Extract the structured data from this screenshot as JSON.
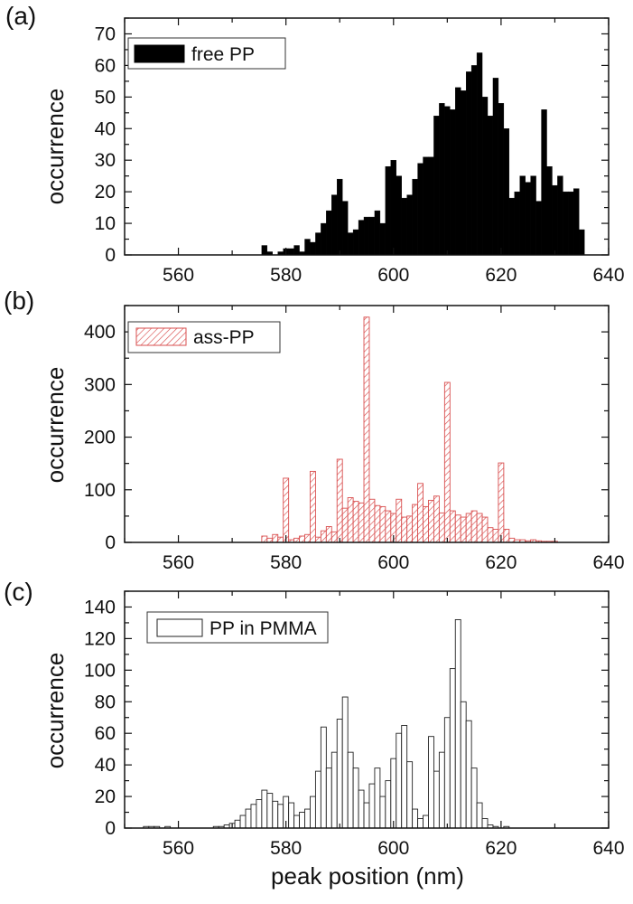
{
  "figure": {
    "xlabel": "peak position (nm)",
    "x_tick_labels": [
      "560",
      "580",
      "600",
      "620",
      "640"
    ]
  },
  "chart_data": [
    {
      "type": "bar",
      "panel_label": "(a)",
      "title": "",
      "xlabel": "",
      "ylabel": "occurrence",
      "xlim": [
        550,
        640
      ],
      "ylim": [
        0,
        75
      ],
      "xticks": [
        560,
        580,
        600,
        620,
        640
      ],
      "yticks": [
        0,
        10,
        20,
        30,
        40,
        50,
        60,
        70
      ],
      "y_tick_labels": [
        "0",
        "10",
        "20",
        "30",
        "40",
        "50",
        "60",
        "70"
      ],
      "legend_label": "free PP",
      "legend_placement": "top-left",
      "fill_color": "#000000",
      "stroke_color": "#000000",
      "pattern": "solid",
      "bin_width": 1,
      "x": [
        576,
        577,
        578,
        579,
        580,
        581,
        582,
        583,
        584,
        585,
        586,
        587,
        588,
        589,
        590,
        591,
        592,
        593,
        594,
        595,
        596,
        597,
        598,
        599,
        600,
        601,
        602,
        603,
        604,
        605,
        606,
        607,
        608,
        609,
        610,
        611,
        612,
        613,
        614,
        615,
        616,
        617,
        618,
        619,
        620,
        621,
        622,
        623,
        624,
        625,
        626,
        627,
        628,
        629,
        630,
        631,
        632,
        633,
        634,
        635
      ],
      "values": [
        3,
        1,
        0,
        1,
        2,
        2,
        3,
        1,
        5,
        4,
        7,
        10,
        14,
        19,
        24,
        17,
        7,
        8,
        11,
        12,
        12,
        14,
        10,
        28,
        30,
        25,
        18,
        19,
        24,
        29,
        31,
        31,
        44,
        48,
        47,
        46,
        53,
        52,
        58,
        60,
        64,
        50,
        44,
        56,
        48,
        40,
        18,
        20,
        25,
        23,
        25,
        17,
        46,
        28,
        22,
        25,
        20,
        20,
        21,
        8
      ]
    },
    {
      "type": "bar",
      "panel_label": "(b)",
      "title": "",
      "xlabel": "",
      "ylabel": "occurrence",
      "xlim": [
        550,
        640
      ],
      "ylim": [
        0,
        450
      ],
      "xticks": [
        560,
        580,
        600,
        620,
        640
      ],
      "yticks": [
        0,
        100,
        200,
        300,
        400
      ],
      "y_tick_labels": [
        "0",
        "100",
        "200",
        "300",
        "400"
      ],
      "legend_label": "ass-PP",
      "legend_placement": "top-left",
      "fill_color": "#ffffff",
      "stroke_color": "#d94f4f",
      "pattern": "diagonal-hatch",
      "bin_width": 1,
      "x": [
        576,
        577,
        578,
        579,
        580,
        581,
        582,
        583,
        584,
        585,
        586,
        587,
        588,
        589,
        590,
        591,
        592,
        593,
        594,
        595,
        596,
        597,
        598,
        599,
        600,
        601,
        602,
        603,
        604,
        605,
        606,
        607,
        608,
        609,
        610,
        611,
        612,
        613,
        614,
        615,
        616,
        617,
        618,
        619,
        620,
        621,
        622,
        623,
        624,
        625,
        626,
        627,
        628,
        629,
        630
      ],
      "values": [
        12,
        8,
        15,
        10,
        122,
        5,
        8,
        12,
        15,
        135,
        10,
        22,
        30,
        20,
        158,
        65,
        85,
        78,
        75,
        428,
        82,
        70,
        68,
        60,
        55,
        82,
        48,
        50,
        72,
        112,
        68,
        80,
        88,
        56,
        304,
        60,
        52,
        48,
        55,
        60,
        55,
        48,
        28,
        25,
        151,
        25,
        8,
        5,
        5,
        3,
        5,
        3,
        2,
        2,
        2
      ]
    },
    {
      "type": "bar",
      "panel_label": "(c)",
      "title": "",
      "xlabel": "peak position (nm)",
      "ylabel": "occurrence",
      "xlim": [
        550,
        640
      ],
      "ylim": [
        0,
        150
      ],
      "xticks": [
        560,
        580,
        600,
        620,
        640
      ],
      "yticks": [
        0,
        20,
        40,
        60,
        80,
        100,
        120,
        140
      ],
      "y_tick_labels": [
        "0",
        "20",
        "40",
        "60",
        "80",
        "100",
        "120",
        "140"
      ],
      "legend_label": "PP in PMMA",
      "legend_placement": "top-left",
      "fill_color": "#ffffff",
      "stroke_color": "#222222",
      "pattern": "open",
      "bin_width": 1,
      "x": [
        554,
        555,
        556,
        558,
        567,
        568,
        569,
        570,
        571,
        572,
        573,
        574,
        575,
        576,
        577,
        578,
        579,
        580,
        581,
        582,
        583,
        584,
        585,
        586,
        587,
        588,
        589,
        590,
        591,
        592,
        593,
        594,
        595,
        596,
        597,
        598,
        599,
        600,
        601,
        602,
        603,
        604,
        605,
        606,
        607,
        608,
        609,
        610,
        611,
        612,
        613,
        614,
        615,
        616,
        617,
        618,
        619,
        621
      ],
      "values": [
        1,
        1,
        1,
        1,
        1,
        1,
        2,
        3,
        5,
        8,
        12,
        15,
        18,
        24,
        22,
        17,
        15,
        20,
        16,
        8,
        10,
        12,
        20,
        36,
        64,
        38,
        48,
        69,
        83,
        48,
        38,
        24,
        16,
        28,
        38,
        20,
        30,
        44,
        60,
        65,
        42,
        12,
        6,
        8,
        58,
        36,
        48,
        70,
        101,
        132,
        80,
        68,
        38,
        16,
        6,
        2,
        1,
        1
      ]
    }
  ]
}
